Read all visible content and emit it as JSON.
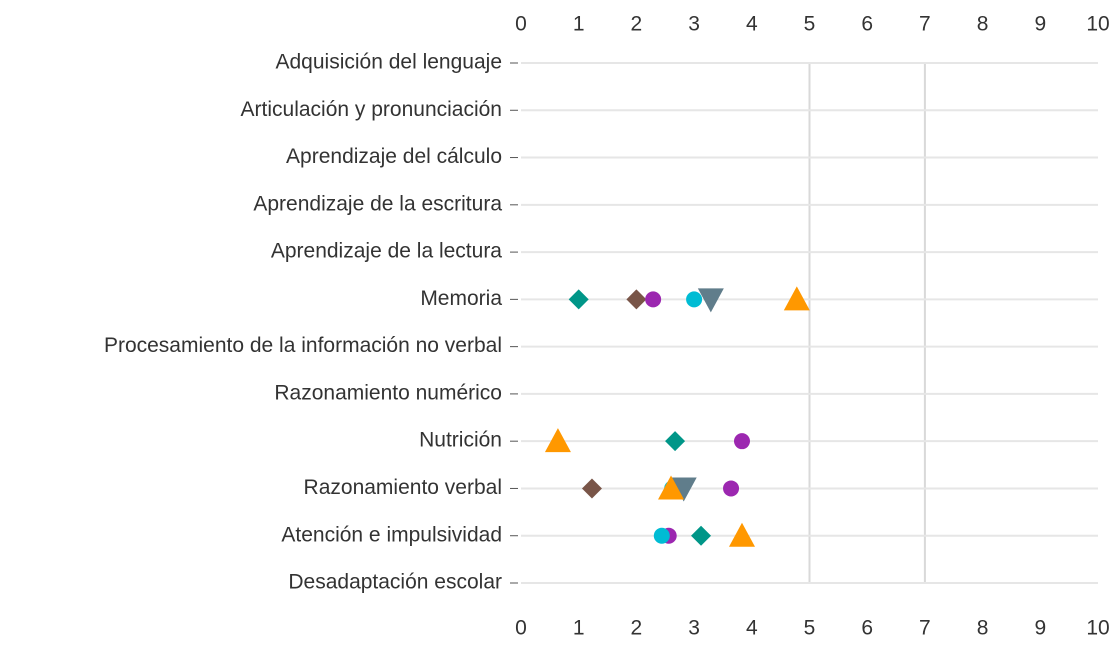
{
  "chart_data": {
    "type": "dot",
    "categories": [
      "Adquisición del lenguaje",
      "Articulación y pronunciación",
      "Aprendizaje del cálculo",
      "Aprendizaje de la escritura",
      "Aprendizaje de la lectura",
      "Memoria",
      "Procesamiento de la información no verbal",
      "Razonamiento numérico",
      "Nutrición",
      "Razonamiento verbal",
      "Atención e impulsividad",
      "Desadaptación escolar"
    ],
    "series": [
      {
        "color": "#009688",
        "marker": "diamond",
        "values": [
          null,
          null,
          null,
          null,
          null,
          1.0,
          null,
          null,
          2.67,
          null,
          3.12,
          null
        ]
      },
      {
        "color": "#795548",
        "marker": "diamond",
        "values": [
          null,
          null,
          null,
          null,
          null,
          2.0,
          null,
          null,
          null,
          1.23,
          null,
          null
        ]
      },
      {
        "color": "#9c27b0",
        "marker": "circle",
        "values": [
          null,
          null,
          null,
          null,
          null,
          2.29,
          null,
          null,
          3.83,
          3.64,
          2.56,
          null
        ]
      },
      {
        "color": "#00bcd4",
        "marker": "circle",
        "values": [
          null,
          null,
          null,
          null,
          null,
          3.0,
          null,
          null,
          null,
          2.62,
          2.44,
          null
        ]
      },
      {
        "color": "#607d8b",
        "marker": "triangle-down",
        "values": [
          null,
          null,
          null,
          null,
          null,
          3.29,
          null,
          null,
          null,
          2.82,
          null,
          null
        ]
      },
      {
        "color": "#ff9800",
        "marker": "triangle-up",
        "values": [
          null,
          null,
          null,
          null,
          null,
          4.78,
          null,
          null,
          0.64,
          2.6,
          3.83,
          null
        ]
      }
    ],
    "xlim": [
      0,
      10
    ],
    "xticks": [
      0,
      1,
      2,
      3,
      4,
      5,
      6,
      7,
      8,
      9,
      10
    ],
    "reference_lines": [
      5,
      7
    ]
  }
}
